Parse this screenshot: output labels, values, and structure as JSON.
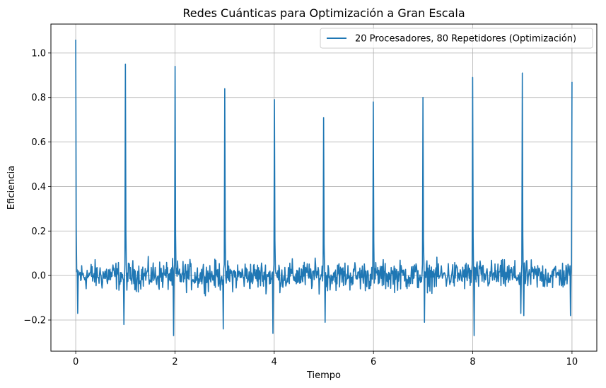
{
  "chart_data": {
    "type": "line",
    "title": "Redes Cuánticas para Optimización a Gran Escala",
    "xlabel": "Tiempo",
    "ylabel": "Eficiencia",
    "xlim": [
      -0.5,
      10.5
    ],
    "ylim": [
      -0.34,
      1.13
    ],
    "xticks": [
      0,
      2,
      4,
      6,
      8,
      10
    ],
    "yticks": [
      -0.2,
      0.0,
      0.2,
      0.4,
      0.6,
      0.8,
      1.0
    ],
    "xtick_labels": [
      "0",
      "2",
      "4",
      "6",
      "8",
      "10"
    ],
    "ytick_labels": [
      "−0.2",
      "0.0",
      "0.2",
      "0.4",
      "0.6",
      "0.8",
      "1.0"
    ],
    "grid": true,
    "legend_position": "top-right",
    "series": [
      {
        "name": "20 Procesadores, 80 Repetidores (Optimización)",
        "color": "#1f77b4",
        "x_start": 0,
        "x_end": 10,
        "num_points": 1000,
        "spike_period": 1,
        "spike_peaks": [
          {
            "x": 0,
            "y": 1.06
          },
          {
            "x": 1,
            "y": 0.95
          },
          {
            "x": 2,
            "y": 0.94
          },
          {
            "x": 3,
            "y": 0.84
          },
          {
            "x": 4,
            "y": 0.79
          },
          {
            "x": 5,
            "y": 0.71
          },
          {
            "x": 6,
            "y": 0.78
          },
          {
            "x": 7,
            "y": 0.8
          },
          {
            "x": 8,
            "y": 0.89
          },
          {
            "x": 9,
            "y": 0.91
          },
          {
            "x": 10,
            "y": 0.87
          }
        ],
        "spike_troughs": [
          {
            "x": 0.04,
            "y": -0.17
          },
          {
            "x": 0.97,
            "y": -0.22
          },
          {
            "x": 1.97,
            "y": -0.27
          },
          {
            "x": 2.97,
            "y": -0.24
          },
          {
            "x": 3.97,
            "y": -0.26
          },
          {
            "x": 5.03,
            "y": -0.21
          },
          {
            "x": 7.03,
            "y": -0.21
          },
          {
            "x": 8.03,
            "y": -0.27
          },
          {
            "x": 8.97,
            "y": -0.17
          },
          {
            "x": 9.03,
            "y": -0.18
          },
          {
            "x": 9.97,
            "y": -0.18
          }
        ],
        "noise_range": [
          -0.12,
          0.12
        ]
      }
    ]
  }
}
